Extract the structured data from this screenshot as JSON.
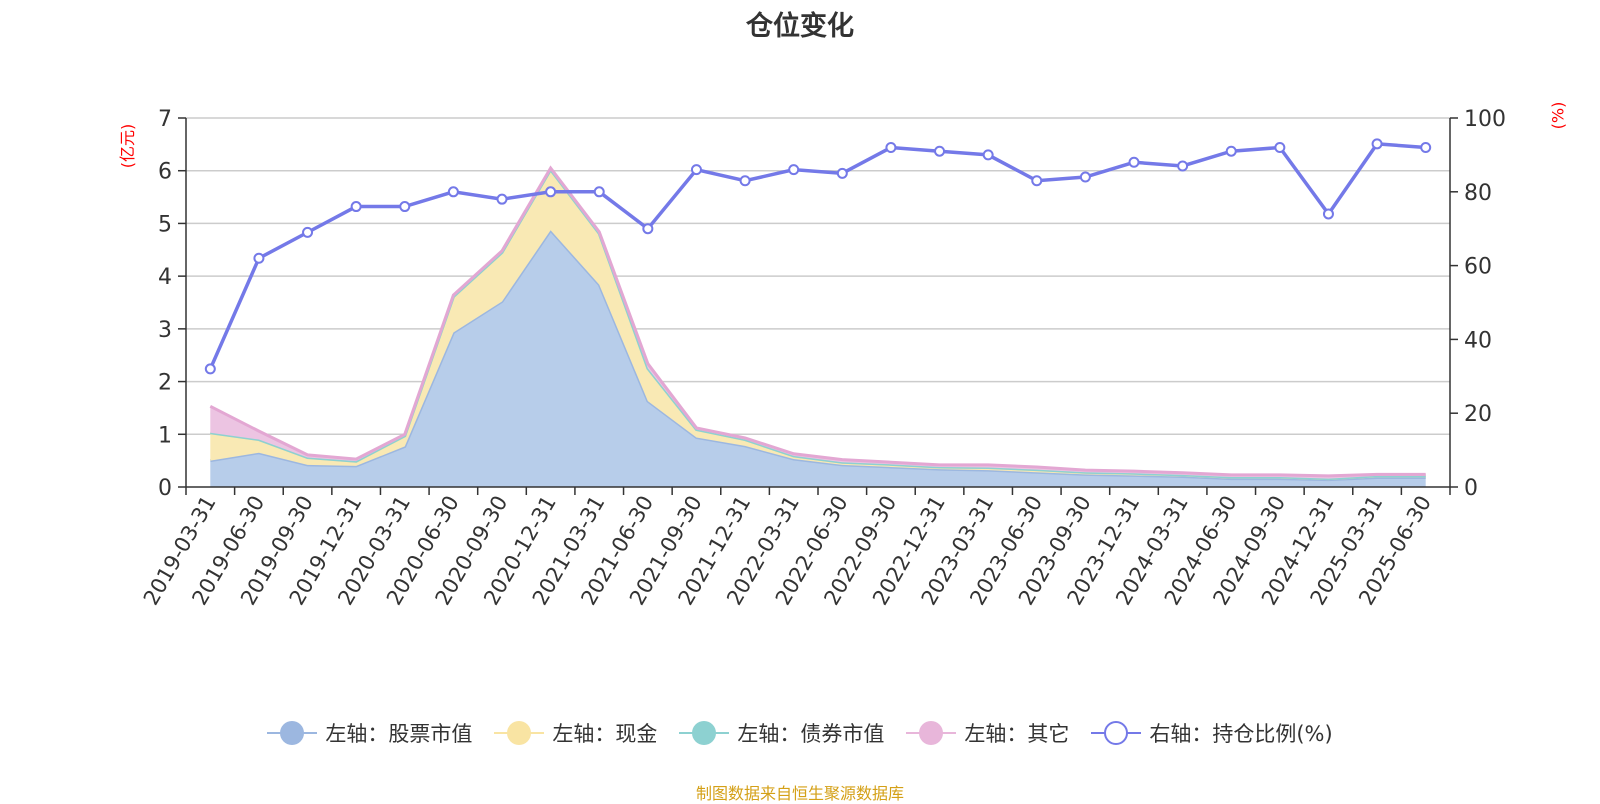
{
  "title": "仓位变化",
  "left_unit": "(亿元)",
  "right_unit": "(%)",
  "source": "制图数据来自恒生聚源数据库",
  "legend": [
    {
      "key": "stock",
      "label": "左轴：股票市值",
      "color": "#9cb7e0",
      "symbol": "filled-circle"
    },
    {
      "key": "cash",
      "label": "左轴：现金",
      "color": "#f9e4a3",
      "symbol": "filled-circle"
    },
    {
      "key": "bond",
      "label": "左轴：债券市值",
      "color": "#8dd1d1",
      "symbol": "filled-circle"
    },
    {
      "key": "other",
      "label": "左轴：其它",
      "color": "#e8b6da",
      "symbol": "filled-circle"
    },
    {
      "key": "ratio",
      "label": "右轴：持仓比例(%)",
      "color": "#7479e8",
      "symbol": "hollow-circle"
    }
  ],
  "chart_data": {
    "type": "area",
    "title": "仓位变化",
    "categories": [
      "2019-03-31",
      "2019-06-30",
      "2019-09-30",
      "2019-12-31",
      "2020-03-31",
      "2020-06-30",
      "2020-09-30",
      "2020-12-31",
      "2021-03-31",
      "2021-06-30",
      "2021-09-30",
      "2021-12-31",
      "2022-03-31",
      "2022-06-30",
      "2022-09-30",
      "2022-12-31",
      "2023-03-31",
      "2023-06-30",
      "2023-09-30",
      "2023-12-31",
      "2024-03-31",
      "2024-06-30",
      "2024-09-30",
      "2024-12-31",
      "2025-03-31",
      "2025-06-30"
    ],
    "y_left": {
      "label": "(亿元)",
      "min": 0,
      "max": 7,
      "ticks": [
        0,
        1,
        2,
        3,
        4,
        5,
        6,
        7
      ]
    },
    "y_right": {
      "label": "(%)",
      "min": 0,
      "max": 100,
      "ticks": [
        0,
        20,
        40,
        60,
        80,
        100
      ]
    },
    "grid": true,
    "legend_position": "bottom",
    "series": [
      {
        "name": "左轴：股票市值",
        "axis": "left",
        "type": "area",
        "color": "#9cb7e0",
        "fill": "#b7cdea",
        "values": [
          0.5,
          0.65,
          0.42,
          0.4,
          0.77,
          2.93,
          3.52,
          4.87,
          3.84,
          1.63,
          0.94,
          0.78,
          0.53,
          0.42,
          0.38,
          0.34,
          0.32,
          0.28,
          0.24,
          0.22,
          0.2,
          0.16,
          0.16,
          0.14,
          0.18,
          0.18
        ]
      },
      {
        "name": "左轴：现金",
        "axis": "left",
        "type": "area",
        "color": "#f5df95",
        "fill": "#f9e9b4",
        "values": [
          0.53,
          0.25,
          0.14,
          0.09,
          0.2,
          0.68,
          0.93,
          1.15,
          0.97,
          0.62,
          0.15,
          0.12,
          0.06,
          0.05,
          0.05,
          0.04,
          0.05,
          0.05,
          0.04,
          0.04,
          0.03,
          0.03,
          0.03,
          0.02,
          0.03,
          0.03
        ]
      },
      {
        "name": "左轴：债券市值",
        "axis": "left",
        "type": "area",
        "color": "#8dd1d1",
        "fill": "#b4e2e2",
        "values": [
          0,
          0,
          0,
          0,
          0,
          0,
          0,
          0,
          0,
          0,
          0,
          0,
          0,
          0,
          0,
          0,
          0,
          0,
          0,
          0,
          0,
          0,
          0,
          0,
          0,
          0
        ]
      },
      {
        "name": "左轴：其它",
        "axis": "left",
        "type": "area",
        "color": "#e3a7d3",
        "fill": "#ecc4e2",
        "values": [
          0.5,
          0.16,
          0.05,
          0.04,
          0.03,
          0.03,
          0.03,
          0.03,
          0.03,
          0.09,
          0.03,
          0.03,
          0.04,
          0.05,
          0.04,
          0.04,
          0.05,
          0.05,
          0.04,
          0.04,
          0.04,
          0.04,
          0.04,
          0.05,
          0.03,
          0.03
        ]
      },
      {
        "name": "右轴：持仓比例(%)",
        "axis": "right",
        "type": "line",
        "color": "#7479e8",
        "values": [
          32,
          62,
          69,
          76,
          76,
          80,
          78,
          80,
          80,
          70,
          86,
          83,
          86,
          85,
          92,
          91,
          90,
          83,
          84,
          88,
          87,
          91,
          92,
          74,
          93,
          92
        ]
      }
    ]
  }
}
